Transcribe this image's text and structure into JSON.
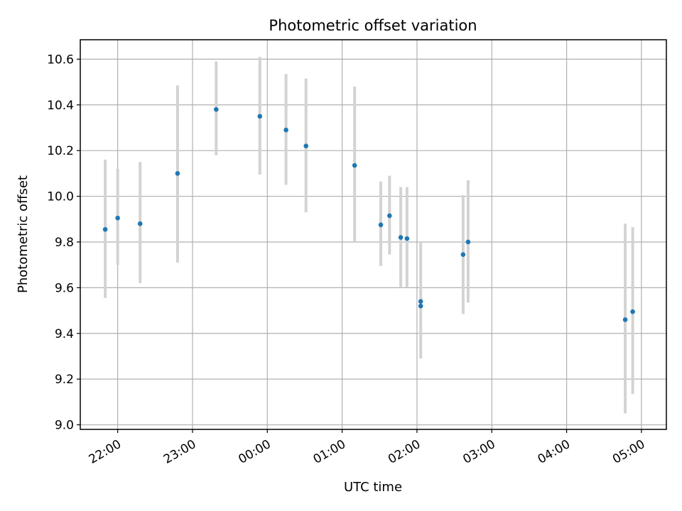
{
  "chart_data": {
    "type": "scatter",
    "title": "Photometric offset variation",
    "xlabel": "UTC time",
    "ylabel": "Photometric offset",
    "x_axis_kind": "time",
    "xlim": [
      "21:30",
      "05:20"
    ],
    "ylim": [
      8.98,
      10.685
    ],
    "x_ticks": [
      "22:00",
      "23:00",
      "00:00",
      "01:00",
      "02:00",
      "03:00",
      "04:00",
      "05:00"
    ],
    "y_ticks": [
      "9.0",
      "9.2",
      "9.4",
      "9.6",
      "9.8",
      "10.0",
      "10.2",
      "10.4",
      "10.6"
    ],
    "grid": true,
    "colors": {
      "point": "#1f77b4",
      "errorbar": "#d3d3d3"
    },
    "points": [
      {
        "x": "21:50",
        "y": 9.855,
        "err_low": 9.555,
        "err_high": 10.16
      },
      {
        "x": "22:00",
        "y": 9.905,
        "err_low": 9.7,
        "err_high": 10.12
      },
      {
        "x": "22:18",
        "y": 9.88,
        "err_low": 9.62,
        "err_high": 10.15
      },
      {
        "x": "22:48",
        "y": 10.1,
        "err_low": 9.71,
        "err_high": 10.485
      },
      {
        "x": "23:19",
        "y": 10.38,
        "err_low": 10.18,
        "err_high": 10.59
      },
      {
        "x": "23:54",
        "y": 10.35,
        "err_low": 10.095,
        "err_high": 10.61
      },
      {
        "x": "00:15",
        "y": 10.29,
        "err_low": 10.05,
        "err_high": 10.535
      },
      {
        "x": "00:31",
        "y": 10.22,
        "err_low": 9.93,
        "err_high": 10.515
      },
      {
        "x": "01:10",
        "y": 10.135,
        "err_low": 9.8,
        "err_high": 10.48
      },
      {
        "x": "01:31",
        "y": 9.875,
        "err_low": 9.695,
        "err_high": 10.065
      },
      {
        "x": "01:38",
        "y": 9.915,
        "err_low": 9.745,
        "err_high": 10.09
      },
      {
        "x": "01:47",
        "y": 9.82,
        "err_low": 9.6,
        "err_high": 10.04
      },
      {
        "x": "01:52",
        "y": 9.815,
        "err_low": 9.6,
        "err_high": 10.04
      },
      {
        "x": "02:03",
        "y": 9.54,
        "err_low": 9.29,
        "err_high": 9.8
      },
      {
        "x": "02:03",
        "y": 9.52
      },
      {
        "x": "02:37",
        "y": 9.745,
        "err_low": 9.485,
        "err_high": 10.005
      },
      {
        "x": "02:41",
        "y": 9.8,
        "err_low": 9.535,
        "err_high": 10.07
      },
      {
        "x": "04:47",
        "y": 9.46,
        "err_low": 9.05,
        "err_high": 9.88
      },
      {
        "x": "04:53",
        "y": 9.495,
        "err_low": 9.135,
        "err_high": 9.865
      }
    ]
  }
}
